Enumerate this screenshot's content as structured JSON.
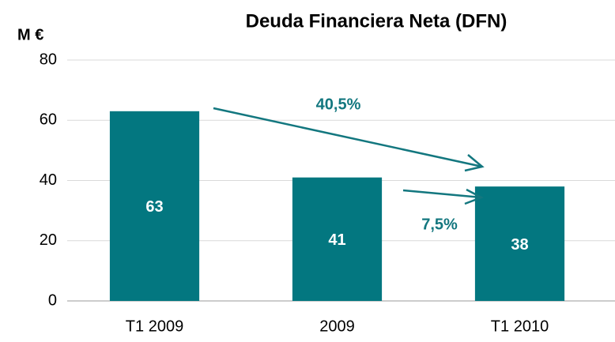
{
  "chart_data": {
    "type": "bar",
    "title": "Deuda Financiera Neta (DFN)",
    "y_label": "M €",
    "categories": [
      "T1 2009",
      "2009",
      "T1 2010"
    ],
    "values": [
      63,
      41,
      38
    ],
    "color": "#037780",
    "ylim": [
      0,
      80
    ],
    "yticks": [
      0,
      20,
      40,
      60,
      80
    ],
    "grid": true,
    "annotations": [
      "40,5%",
      "7,5%"
    ]
  }
}
